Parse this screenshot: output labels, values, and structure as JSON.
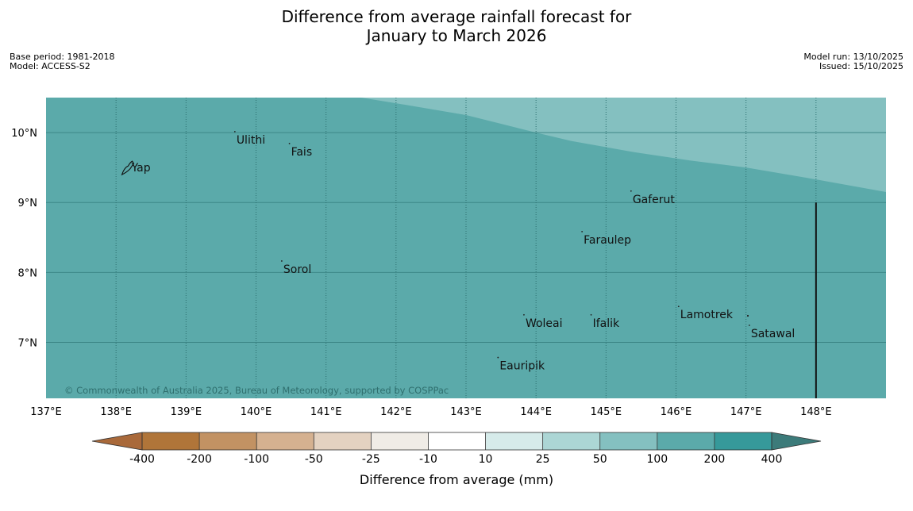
{
  "header": {
    "title_line1": "Difference from average rainfall forecast for",
    "title_line2": "January to March 2026",
    "base_period": "Base period: 1981-2018",
    "model": "Model: ACCESS-S2",
    "model_run": "Model run: 13/10/2025",
    "issued": "Issued: 15/10/2025"
  },
  "map": {
    "lon_range": [
      137,
      149
    ],
    "lat_range": [
      6.2,
      10.5
    ],
    "lon_ticks": [
      {
        "value": 137,
        "label": "137°E"
      },
      {
        "value": 138,
        "label": "138°E"
      },
      {
        "value": 139,
        "label": "139°E"
      },
      {
        "value": 140,
        "label": "140°E"
      },
      {
        "value": 141,
        "label": "141°E"
      },
      {
        "value": 142,
        "label": "142°E"
      },
      {
        "value": 143,
        "label": "143°E"
      },
      {
        "value": 144,
        "label": "144°E"
      },
      {
        "value": 145,
        "label": "145°E"
      },
      {
        "value": 146,
        "label": "146°E"
      },
      {
        "value": 147,
        "label": "147°E"
      },
      {
        "value": 148,
        "label": "148°E"
      }
    ],
    "lat_ticks": [
      {
        "value": 10,
        "label": "10°N"
      },
      {
        "value": 9,
        "label": "9°N"
      },
      {
        "value": 8,
        "label": "8°N"
      },
      {
        "value": 7,
        "label": "7°N"
      }
    ],
    "base_fill": "#5baaaa",
    "upper_fill": "#84c0c0",
    "upper_zone_boundary": [
      [
        141.5,
        10.5
      ],
      [
        142.0,
        10.42
      ],
      [
        143.0,
        10.25
      ],
      [
        144.0,
        10.0
      ],
      [
        144.5,
        9.88
      ],
      [
        145.4,
        9.72
      ],
      [
        146.2,
        9.6
      ],
      [
        147.0,
        9.5
      ],
      [
        148.0,
        9.33
      ],
      [
        149.0,
        9.15
      ]
    ],
    "divider_line": {
      "lon": 148,
      "lat_from": 6.2,
      "lat_to": 9.0
    },
    "places": [
      {
        "name": "Yap",
        "lon": 138.22,
        "lat": 9.5
      },
      {
        "name": "Ulithi",
        "lon": 139.72,
        "lat": 9.9
      },
      {
        "name": "Fais",
        "lon": 140.5,
        "lat": 9.73
      },
      {
        "name": "Gaferut",
        "lon": 145.38,
        "lat": 9.05
      },
      {
        "name": "Faraulep",
        "lon": 144.68,
        "lat": 8.47
      },
      {
        "name": "Sorol",
        "lon": 140.39,
        "lat": 8.05
      },
      {
        "name": "Lamotrek",
        "lon": 146.06,
        "lat": 7.4
      },
      {
        "name": "Woleai",
        "lon": 143.85,
        "lat": 7.28
      },
      {
        "name": "Ifalik",
        "lon": 144.81,
        "lat": 7.28
      },
      {
        "name": "Satawal",
        "lon": 147.07,
        "lat": 7.13
      },
      {
        "name": "Eauripik",
        "lon": 143.48,
        "lat": 6.67
      }
    ],
    "copyright": "© Commonwealth of Australia 2025, Bureau of Meteorology, supported by COSPPac"
  },
  "colorbar": {
    "title": "Difference from average (mm)",
    "labels": [
      "-400",
      "-200",
      "-100",
      "-50",
      "-25",
      "-10",
      "10",
      "25",
      "50",
      "100",
      "200",
      "400"
    ],
    "colors": [
      "#a9693a",
      "#b07539",
      "#c29263",
      "#d5b190",
      "#e4d2c1",
      "#f0ece6",
      "#ffffff",
      "#d6ebea",
      "#acd6d5",
      "#84c0c0",
      "#5baaaa",
      "#36999a",
      "#3c7b7a"
    ]
  }
}
